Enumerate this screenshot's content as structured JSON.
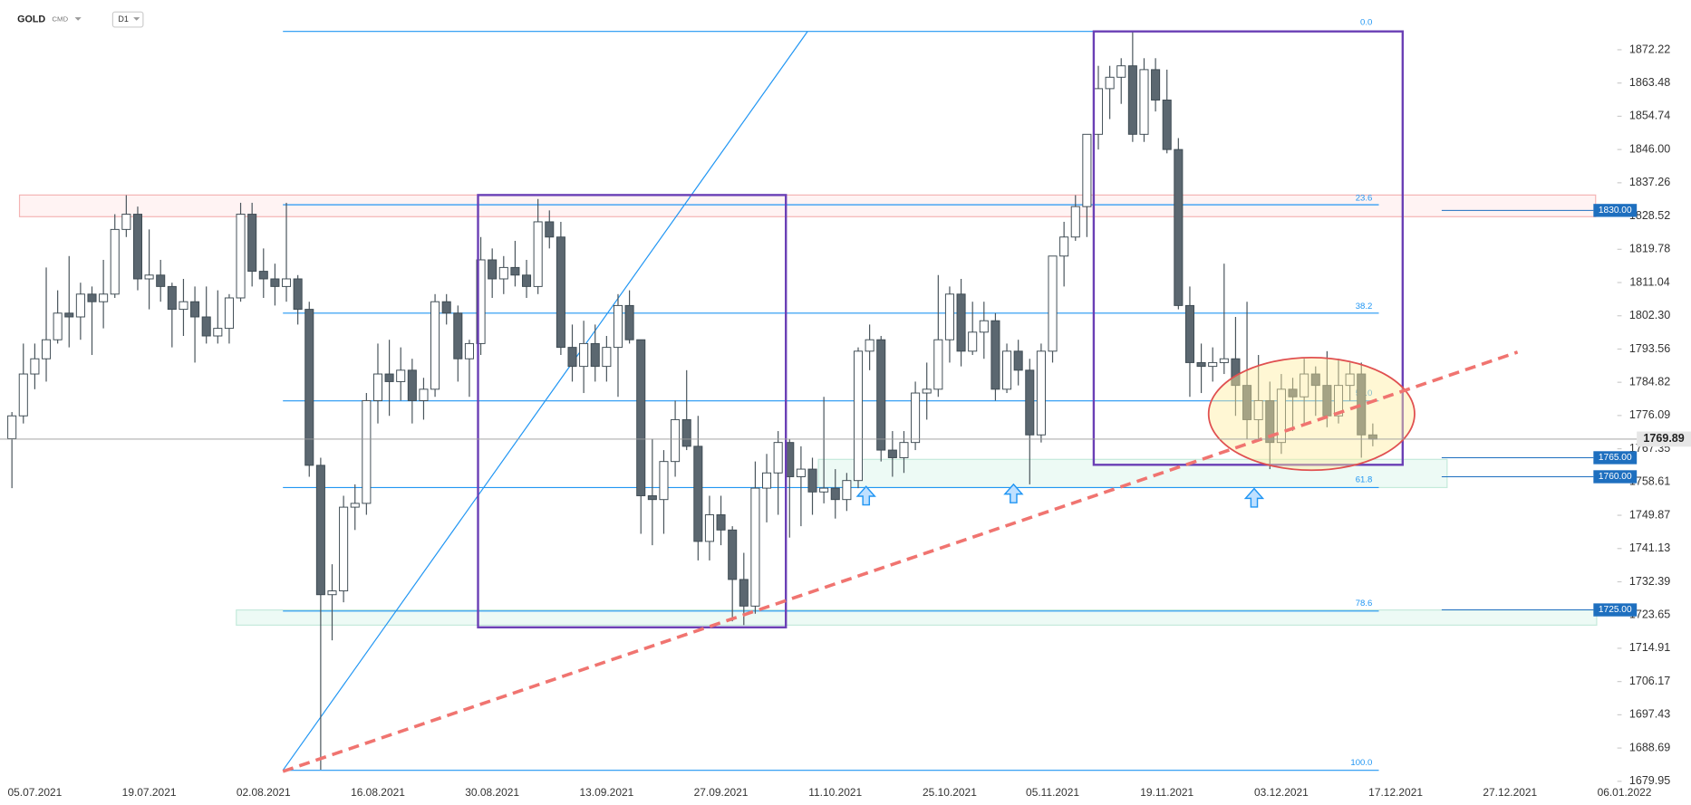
{
  "header": {
    "symbol": "GOLD",
    "market": "CMD",
    "timeframe": "D1"
  },
  "chart_data": {
    "type": "candlestick",
    "x": [
      "01.07.2021",
      "02.07.2021",
      "05.07.2021",
      "06.07.2021",
      "07.07.2021",
      "08.07.2021",
      "09.07.2021",
      "12.07.2021",
      "13.07.2021",
      "14.07.2021",
      "15.07.2021",
      "16.07.2021",
      "19.07.2021",
      "20.07.2021",
      "21.07.2021",
      "22.07.2021",
      "23.07.2021",
      "26.07.2021",
      "27.07.2021",
      "28.07.2021",
      "29.07.2021",
      "30.07.2021",
      "02.08.2021",
      "03.08.2021",
      "04.08.2021",
      "05.08.2021",
      "06.08.2021",
      "09.08.2021",
      "10.08.2021",
      "11.08.2021",
      "12.08.2021",
      "13.08.2021",
      "16.08.2021",
      "17.08.2021",
      "18.08.2021",
      "19.08.2021",
      "20.08.2021",
      "23.08.2021",
      "24.08.2021",
      "25.08.2021",
      "26.08.2021",
      "27.08.2021",
      "30.08.2021",
      "31.08.2021",
      "01.09.2021",
      "02.09.2021",
      "03.09.2021",
      "06.09.2021",
      "07.09.2021",
      "08.09.2021",
      "09.09.2021",
      "10.09.2021",
      "13.09.2021",
      "14.09.2021",
      "15.09.2021",
      "16.09.2021",
      "17.09.2021",
      "20.09.2021",
      "21.09.2021",
      "22.09.2021",
      "23.09.2021",
      "24.09.2021",
      "27.09.2021",
      "28.09.2021",
      "29.09.2021",
      "30.09.2021",
      "01.10.2021",
      "04.10.2021",
      "05.10.2021",
      "06.10.2021",
      "07.10.2021",
      "08.10.2021",
      "11.10.2021",
      "12.10.2021",
      "13.10.2021",
      "14.10.2021",
      "15.10.2021",
      "18.10.2021",
      "19.10.2021",
      "20.10.2021",
      "21.10.2021",
      "22.10.2021",
      "25.10.2021",
      "26.10.2021",
      "27.10.2021",
      "28.10.2021",
      "29.10.2021",
      "01.11.2021",
      "02.11.2021",
      "03.11.2021",
      "04.11.2021",
      "05.11.2021",
      "08.11.2021",
      "09.11.2021",
      "10.11.2021",
      "11.11.2021",
      "12.11.2021",
      "15.11.2021",
      "16.11.2021",
      "17.11.2021",
      "18.11.2021",
      "19.11.2021",
      "22.11.2021",
      "23.11.2021",
      "24.11.2021",
      "25.11.2021",
      "26.11.2021",
      "29.11.2021",
      "30.11.2021",
      "01.12.2021",
      "02.12.2021",
      "03.12.2021",
      "06.12.2021",
      "07.12.2021",
      "08.12.2021",
      "09.12.2021",
      "10.12.2021",
      "13.12.2021",
      "14.12.2021",
      "15.12.2021"
    ],
    "open": [
      1770,
      1776,
      1787,
      1791,
      1796,
      1803,
      1802,
      1808,
      1806,
      1808,
      1825,
      1829,
      1812,
      1813,
      1810,
      1804,
      1806,
      1802,
      1797,
      1799,
      1807,
      1829,
      1814,
      1812,
      1810,
      1812,
      1804,
      1763,
      1729,
      1730,
      1752,
      1753,
      1780,
      1787,
      1785,
      1788,
      1780,
      1783,
      1806,
      1803,
      1791,
      1795,
      1817,
      1812,
      1815,
      1813,
      1810,
      1827,
      1823,
      1794,
      1789,
      1795,
      1789,
      1794,
      1805,
      1796,
      1755,
      1754,
      1764,
      1775,
      1768,
      1743,
      1750,
      1746,
      1733,
      1726,
      1757,
      1761,
      1769,
      1760,
      1762,
      1756,
      1757,
      1754,
      1759,
      1793,
      1796,
      1767,
      1765,
      1769,
      1782,
      1783,
      1796,
      1808,
      1793,
      1798,
      1801,
      1783,
      1793,
      1788,
      1771,
      1793,
      1818,
      1823,
      1831,
      1850,
      1862,
      1865,
      1868,
      1850,
      1867,
      1859,
      1846,
      1805,
      1790,
      1789,
      1790,
      1791,
      1784,
      1775,
      1780,
      1769,
      1783,
      1781,
      1787,
      1784,
      1776,
      1784,
      1787,
      1771
    ],
    "high": [
      1777,
      1795,
      1795,
      1815,
      1809,
      1818,
      1811,
      1810,
      1817,
      1829,
      1834,
      1831,
      1825,
      1817,
      1811,
      1812,
      1810,
      1810,
      1809,
      1808,
      1832,
      1832,
      1820,
      1816,
      1832,
      1813,
      1806,
      1765,
      1737,
      1755,
      1758,
      1782,
      1795,
      1796,
      1794,
      1791,
      1786,
      1808,
      1808,
      1805,
      1796,
      1823,
      1820,
      1818,
      1822,
      1817,
      1833,
      1830,
      1827,
      1800,
      1801,
      1800,
      1797,
      1808,
      1809,
      1796,
      1770,
      1767,
      1780,
      1788,
      1776,
      1755,
      1755,
      1747,
      1740,
      1764,
      1766,
      1772,
      1770,
      1768,
      1765,
      1781,
      1762,
      1761,
      1794,
      1800,
      1797,
      1772,
      1772,
      1785,
      1790,
      1813,
      1810,
      1812,
      1806,
      1806,
      1803,
      1795,
      1796,
      1791,
      1795,
      1818,
      1827,
      1834,
      1850,
      1868,
      1868,
      1870,
      1877,
      1870,
      1870,
      1867,
      1849,
      1810,
      1795,
      1794,
      1816,
      1802,
      1806,
      1792,
      1785,
      1787,
      1786,
      1791,
      1789,
      1793,
      1791,
      1790,
      1790,
      1774
    ],
    "low": [
      1757,
      1774,
      1783,
      1785,
      1795,
      1794,
      1796,
      1792,
      1799,
      1807,
      1823,
      1809,
      1804,
      1806,
      1794,
      1797,
      1790,
      1795,
      1795,
      1795,
      1806,
      1810,
      1807,
      1805,
      1806,
      1800,
      1760,
      1683,
      1717,
      1727,
      1746,
      1750,
      1774,
      1776,
      1780,
      1774,
      1775,
      1781,
      1800,
      1785,
      1781,
      1792,
      1807,
      1808,
      1810,
      1807,
      1808,
      1820,
      1792,
      1785,
      1782,
      1785,
      1785,
      1781,
      1795,
      1745,
      1742,
      1745,
      1760,
      1767,
      1738,
      1738,
      1742,
      1722,
      1721,
      1724,
      1748,
      1750,
      1744,
      1747,
      1750,
      1753,
      1749,
      1751,
      1757,
      1788,
      1764,
      1760,
      1761,
      1767,
      1775,
      1781,
      1790,
      1789,
      1792,
      1791,
      1780,
      1782,
      1784,
      1758,
      1769,
      1790,
      1810,
      1822,
      1823,
      1846,
      1854,
      1858,
      1848,
      1848,
      1856,
      1845,
      1804,
      1781,
      1782,
      1785,
      1787,
      1776,
      1770,
      1770,
      1762,
      1766,
      1772,
      1774,
      1776,
      1773,
      1774,
      1780,
      1765,
      1768
    ],
    "close": [
      1776,
      1787,
      1791,
      1796,
      1803,
      1802,
      1808,
      1806,
      1808,
      1825,
      1829,
      1812,
      1813,
      1810,
      1804,
      1806,
      1802,
      1797,
      1799,
      1807,
      1829,
      1814,
      1812,
      1810,
      1812,
      1804,
      1763,
      1729,
      1730,
      1752,
      1753,
      1780,
      1787,
      1785,
      1788,
      1780,
      1783,
      1806,
      1803,
      1791,
      1795,
      1817,
      1812,
      1815,
      1813,
      1810,
      1827,
      1823,
      1794,
      1789,
      1795,
      1789,
      1794,
      1805,
      1796,
      1755,
      1754,
      1764,
      1775,
      1768,
      1743,
      1750,
      1746,
      1733,
      1726,
      1757,
      1761,
      1769,
      1760,
      1762,
      1756,
      1757,
      1754,
      1759,
      1793,
      1796,
      1767,
      1765,
      1769,
      1782,
      1783,
      1796,
      1808,
      1793,
      1798,
      1801,
      1783,
      1793,
      1788,
      1771,
      1793,
      1818,
      1823,
      1831,
      1850,
      1862,
      1865,
      1868,
      1850,
      1867,
      1859,
      1846,
      1805,
      1790,
      1789,
      1790,
      1791,
      1784,
      1775,
      1780,
      1769,
      1783,
      1781,
      1787,
      1784,
      1776,
      1784,
      1787,
      1771,
      1769.89
    ],
    "up_color": "#ffffff",
    "down_color": "#5b6770",
    "xticks": [
      "05.07.2021",
      "19.07.2021",
      "02.08.2021",
      "16.08.2021",
      "30.08.2021",
      "13.09.2021",
      "27.09.2021",
      "11.10.2021",
      "25.10.2021",
      "05.11.2021",
      "19.11.2021",
      "03.12.2021",
      "17.12.2021",
      "27.12.2021",
      "06.01.2022"
    ],
    "ylim": [
      1679.7,
      1885.3
    ],
    "yticks": [
      1872.22,
      1863.48,
      1854.74,
      {
        "value": 1846,
        "label": "1846.00"
      },
      1837.26,
      1828.52,
      1819.78,
      1811.04,
      {
        "value": 1802.3,
        "label": "1802.30"
      },
      1793.56,
      1784.82,
      1776.09,
      1767.35,
      1758.61,
      1749.87,
      1741.13,
      1732.39,
      1723.65,
      1714.91,
      1706.17,
      1697.43,
      1688.69,
      1679.95
    ],
    "price_levels": [
      {
        "value": 1830,
        "label": "1830.00"
      },
      {
        "value": 1765,
        "label": "1765.00"
      },
      {
        "value": 1760,
        "label": "1760.00"
      },
      {
        "value": 1725,
        "label": "1725.00"
      }
    ],
    "current_price": 1769.89,
    "fib_levels": [
      "0.0",
      "23.6",
      "38.2",
      "50.0",
      "61.8",
      "78.6",
      "100.0"
    ]
  }
}
